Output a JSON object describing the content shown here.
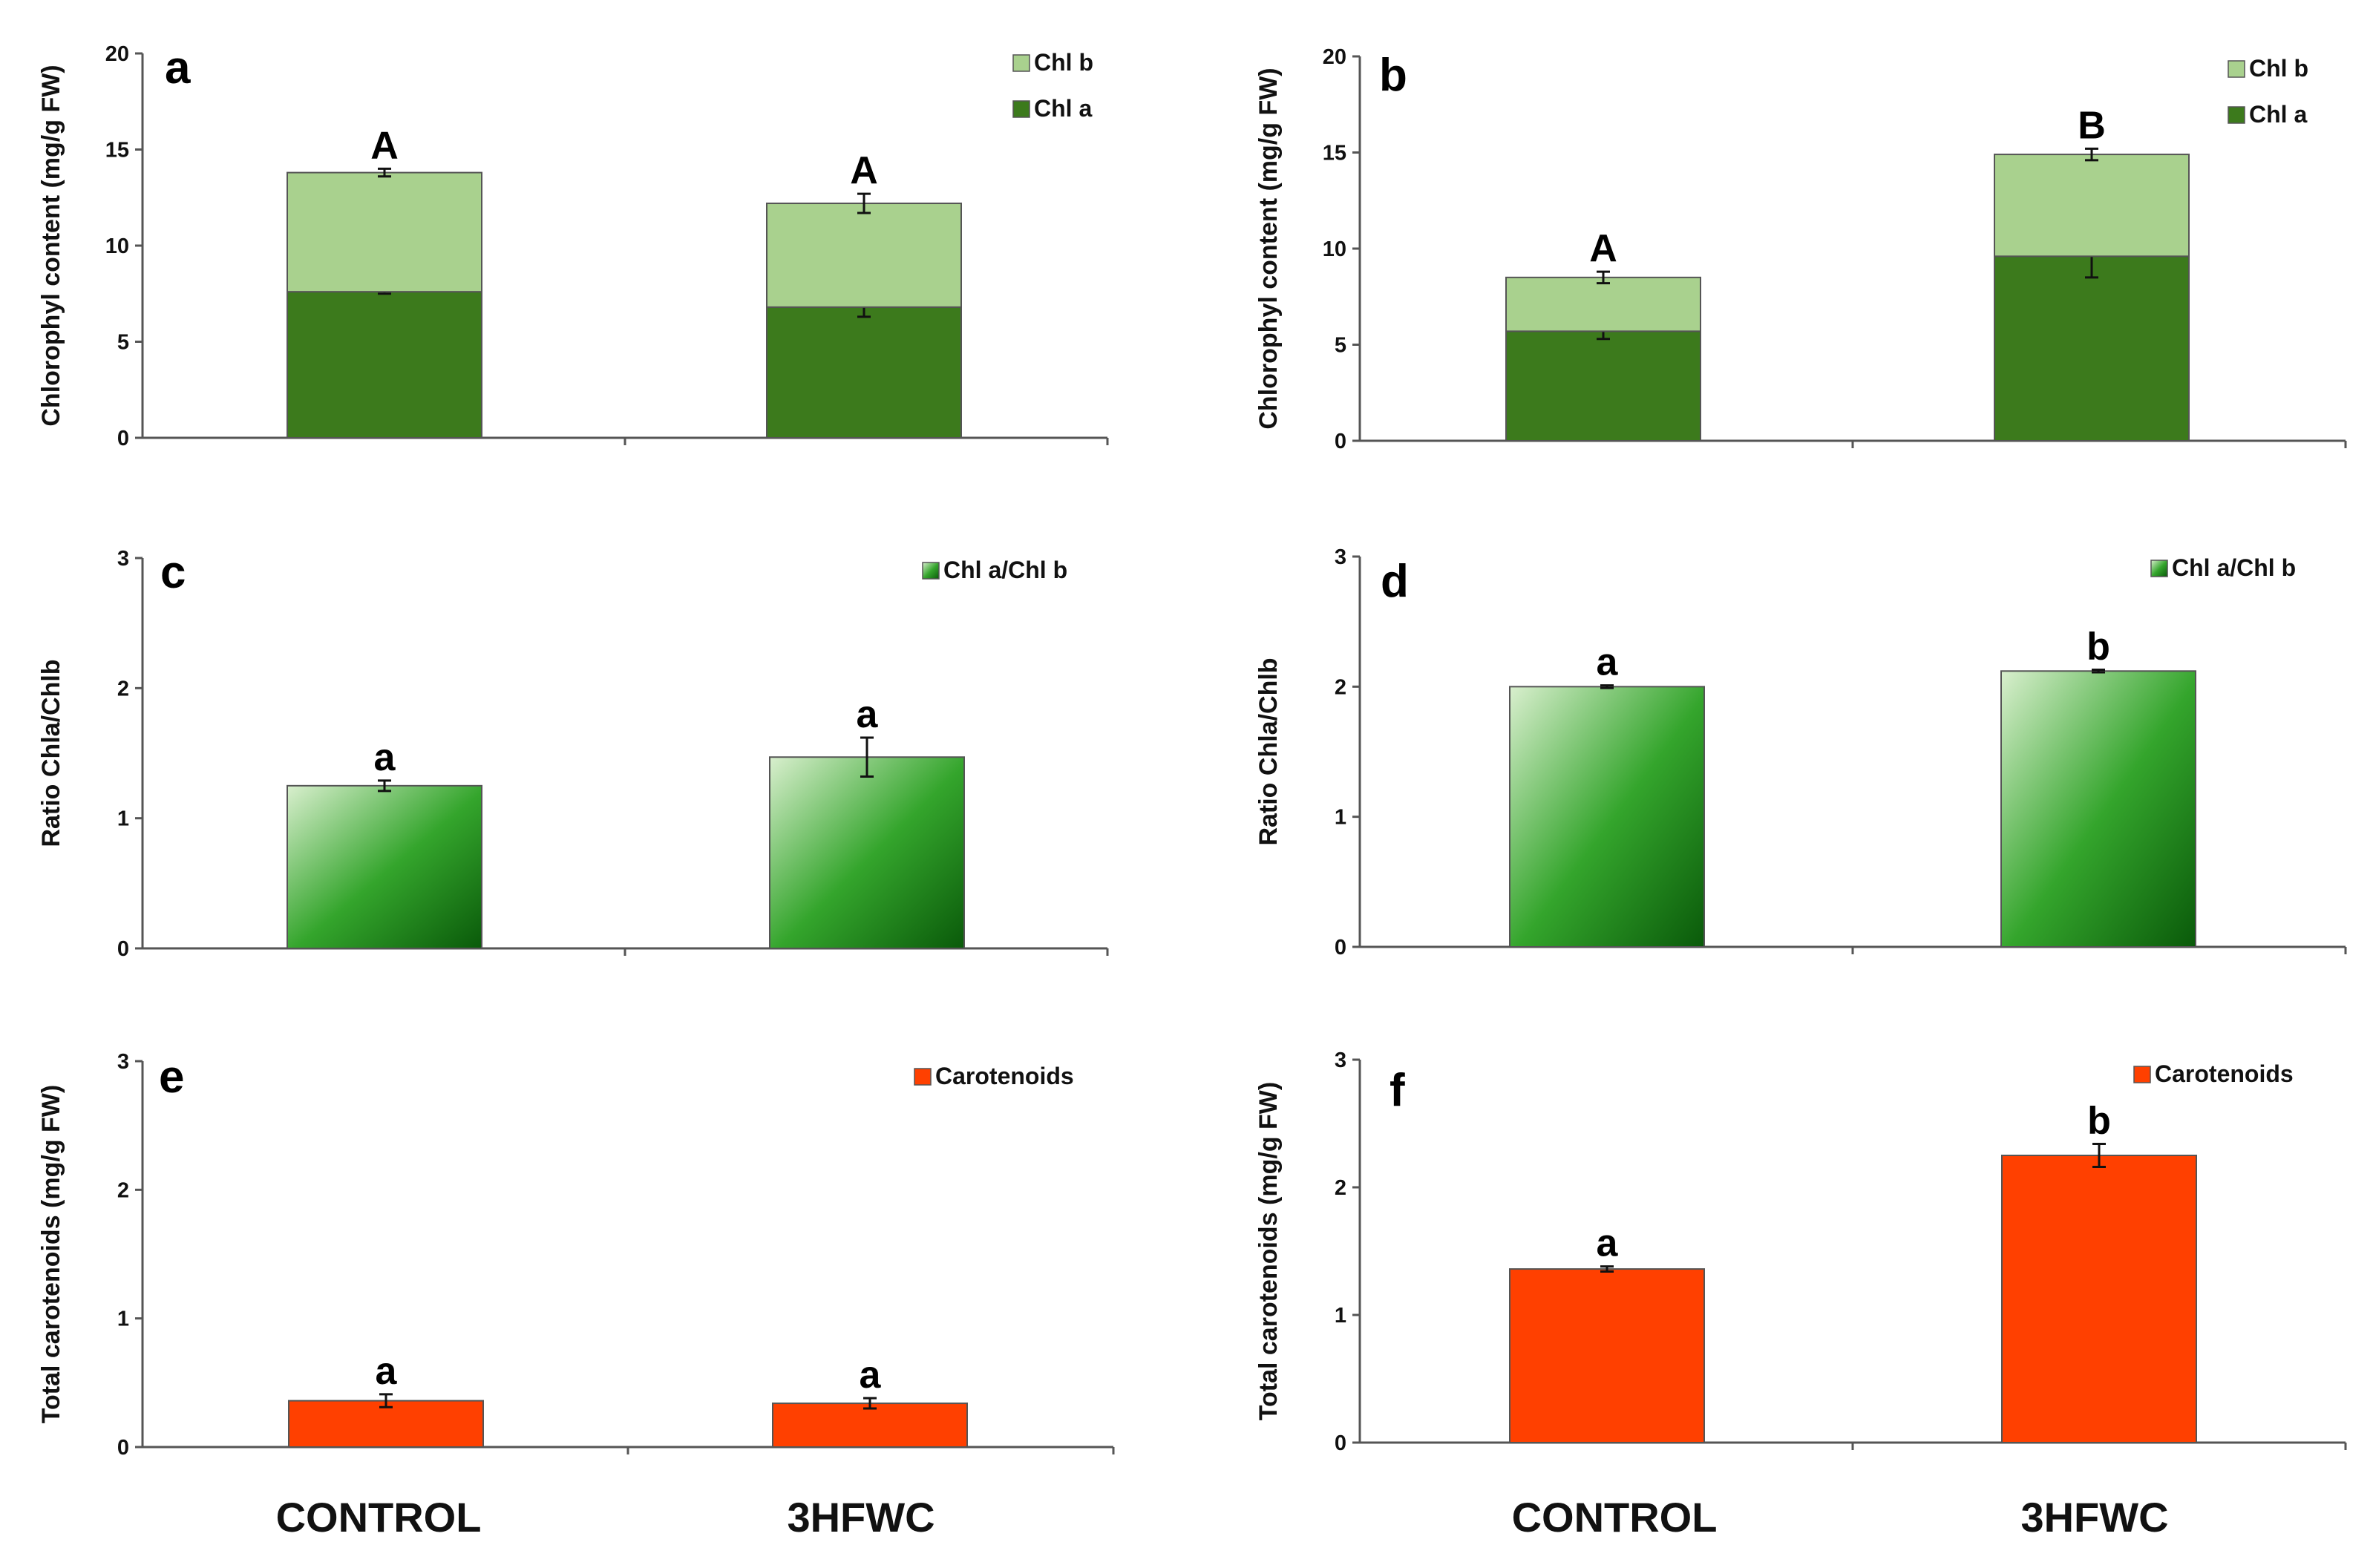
{
  "categories": [
    "CONTROL",
    "3HFWC"
  ],
  "colors": {
    "chl_a": "#3c7a1c",
    "chl_b": "#a9d18e",
    "ratio_light": "#d9efce",
    "ratio_mid": "#34a52c",
    "ratio_dark": "#0a5a0a",
    "carotenoids": "#ff4000",
    "axis": "#555555"
  },
  "chart_data": [
    {
      "panel": "a",
      "type": "bar",
      "stacked": true,
      "ylabel": "Chlorophyl content  (mg/g FW)",
      "ylim": [
        0,
        20
      ],
      "yticks": [
        0,
        5,
        10,
        15,
        20
      ],
      "categories": [
        "CONTROL",
        "3HFWC"
      ],
      "legend": [
        "Chl b",
        "Chl a"
      ],
      "legend_position": "top-right",
      "series": [
        {
          "name": "Chl a",
          "values": [
            7.6,
            6.8
          ],
          "errors": [
            0.1,
            0.5
          ],
          "labels": [
            "a",
            "a"
          ],
          "color_key": "chl_a"
        },
        {
          "name": "Chl b",
          "values": [
            6.2,
            5.4
          ],
          "errors": [
            0.2,
            0.5
          ],
          "labels": [
            "A",
            "A"
          ],
          "color_key": "chl_b"
        }
      ]
    },
    {
      "panel": "b",
      "type": "bar",
      "stacked": true,
      "ylabel": "Chlorophyl content  (mg/g FW)",
      "ylim": [
        0,
        20
      ],
      "yticks": [
        0,
        5,
        10,
        15,
        20
      ],
      "categories": [
        "CONTROL",
        "3HFWC"
      ],
      "legend": [
        "Chl b",
        "Chl a"
      ],
      "legend_position": "top-right",
      "series": [
        {
          "name": "Chl a",
          "values": [
            5.7,
            9.6
          ],
          "errors": [
            0.4,
            1.1
          ],
          "labels": [
            "a",
            "b"
          ],
          "color_key": "chl_a"
        },
        {
          "name": "Chl b",
          "values": [
            2.8,
            5.3
          ],
          "errors": [
            0.3,
            0.3
          ],
          "labels": [
            "A",
            "B"
          ],
          "color_key": "chl_b"
        }
      ]
    },
    {
      "panel": "c",
      "type": "bar",
      "ylabel": "Ratio Chla/Chlb",
      "ylim": [
        0,
        3
      ],
      "yticks": [
        0,
        1,
        2,
        3
      ],
      "categories": [
        "CONTROL",
        "3HFWC"
      ],
      "legend": [
        "Chl a/Chl b"
      ],
      "legend_position": "top-right",
      "series": [
        {
          "name": "Chl a/Chl b",
          "values": [
            1.25,
            1.47
          ],
          "errors": [
            0.04,
            0.15
          ],
          "labels": [
            "a",
            "a"
          ],
          "color_key": "ratio"
        }
      ]
    },
    {
      "panel": "d",
      "type": "bar",
      "ylabel": "Ratio Chla/Chlb",
      "ylim": [
        0,
        3
      ],
      "yticks": [
        0,
        1,
        2,
        3
      ],
      "categories": [
        "CONTROL",
        "3HFWC"
      ],
      "legend": [
        "Chl a/Chl b"
      ],
      "legend_position": "top-right",
      "series": [
        {
          "name": "Chl a/Chl b",
          "values": [
            2.0,
            2.12
          ],
          "errors": [
            0.01,
            0.01
          ],
          "labels": [
            "a",
            "b"
          ],
          "color_key": "ratio"
        }
      ]
    },
    {
      "panel": "e",
      "type": "bar",
      "ylabel": "Total carotenoids  (mg/g FW)",
      "ylim": [
        0,
        3
      ],
      "yticks": [
        0,
        1,
        2,
        3
      ],
      "categories": [
        "CONTROL",
        "3HFWC"
      ],
      "legend": [
        "Carotenoids"
      ],
      "legend_position": "top-right",
      "series": [
        {
          "name": "Carotenoids",
          "values": [
            0.36,
            0.34
          ],
          "errors": [
            0.05,
            0.04
          ],
          "labels": [
            "a",
            "a"
          ],
          "color_key": "carotenoids"
        }
      ]
    },
    {
      "panel": "f",
      "type": "bar",
      "ylabel": "Total carotenoids  (mg/g FW)",
      "ylim": [
        0,
        3
      ],
      "yticks": [
        0,
        1,
        2,
        3
      ],
      "categories": [
        "CONTROL",
        "3HFWC"
      ],
      "legend": [
        "Carotenoids"
      ],
      "legend_position": "top-right",
      "series": [
        {
          "name": "Carotenoids",
          "values": [
            1.36,
            2.25
          ],
          "errors": [
            0.02,
            0.09
          ],
          "labels": [
            "a",
            "b"
          ],
          "color_key": "carotenoids"
        }
      ]
    }
  ]
}
